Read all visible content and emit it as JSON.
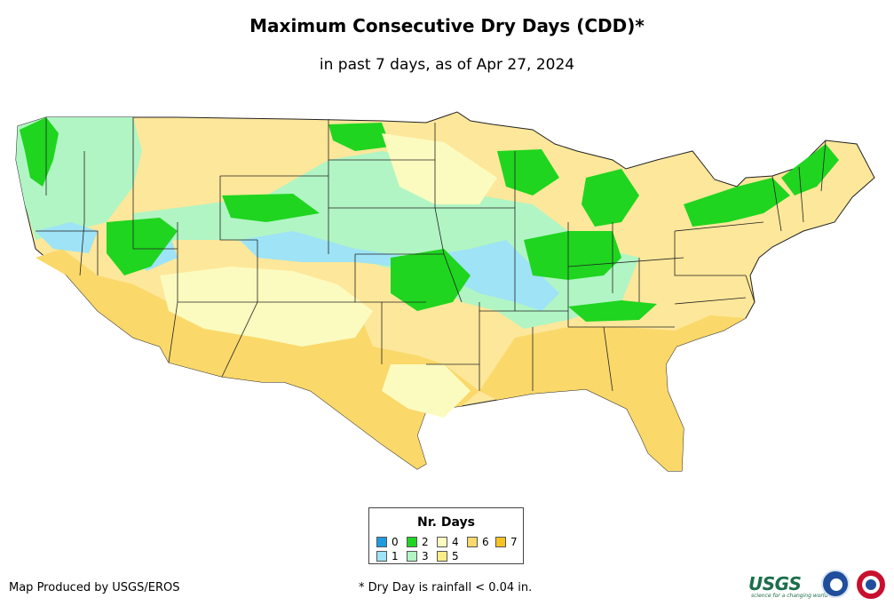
{
  "title": "Maximum Consecutive Dry Days (CDD)*",
  "subtitle": "in past 7 days, as of Apr 27, 2024",
  "legend": {
    "title": "Nr. Days",
    "items": [
      {
        "label": "0",
        "color": "#1f9be0"
      },
      {
        "label": "1",
        "color": "#9ee3f6"
      },
      {
        "label": "2",
        "color": "#1fd51f"
      },
      {
        "label": "3",
        "color": "#b1f5c4"
      },
      {
        "label": "4",
        "color": "#fbfbbf"
      },
      {
        "label": "5",
        "color": "#fdec8a"
      },
      {
        "label": "6",
        "color": "#fad86a"
      },
      {
        "label": "7",
        "color": "#f6c222"
      }
    ]
  },
  "credit": "Map Produced by USGS/EROS",
  "footnote": "* Dry Day is rainfall < 0.04 in.",
  "logos": {
    "usgs": "USGS",
    "usgs_tagline": "science for a changing world",
    "noaa": "NOAA logo",
    "nws": "National Weather Service logo"
  },
  "colors": {
    "state_border": "#222222"
  }
}
